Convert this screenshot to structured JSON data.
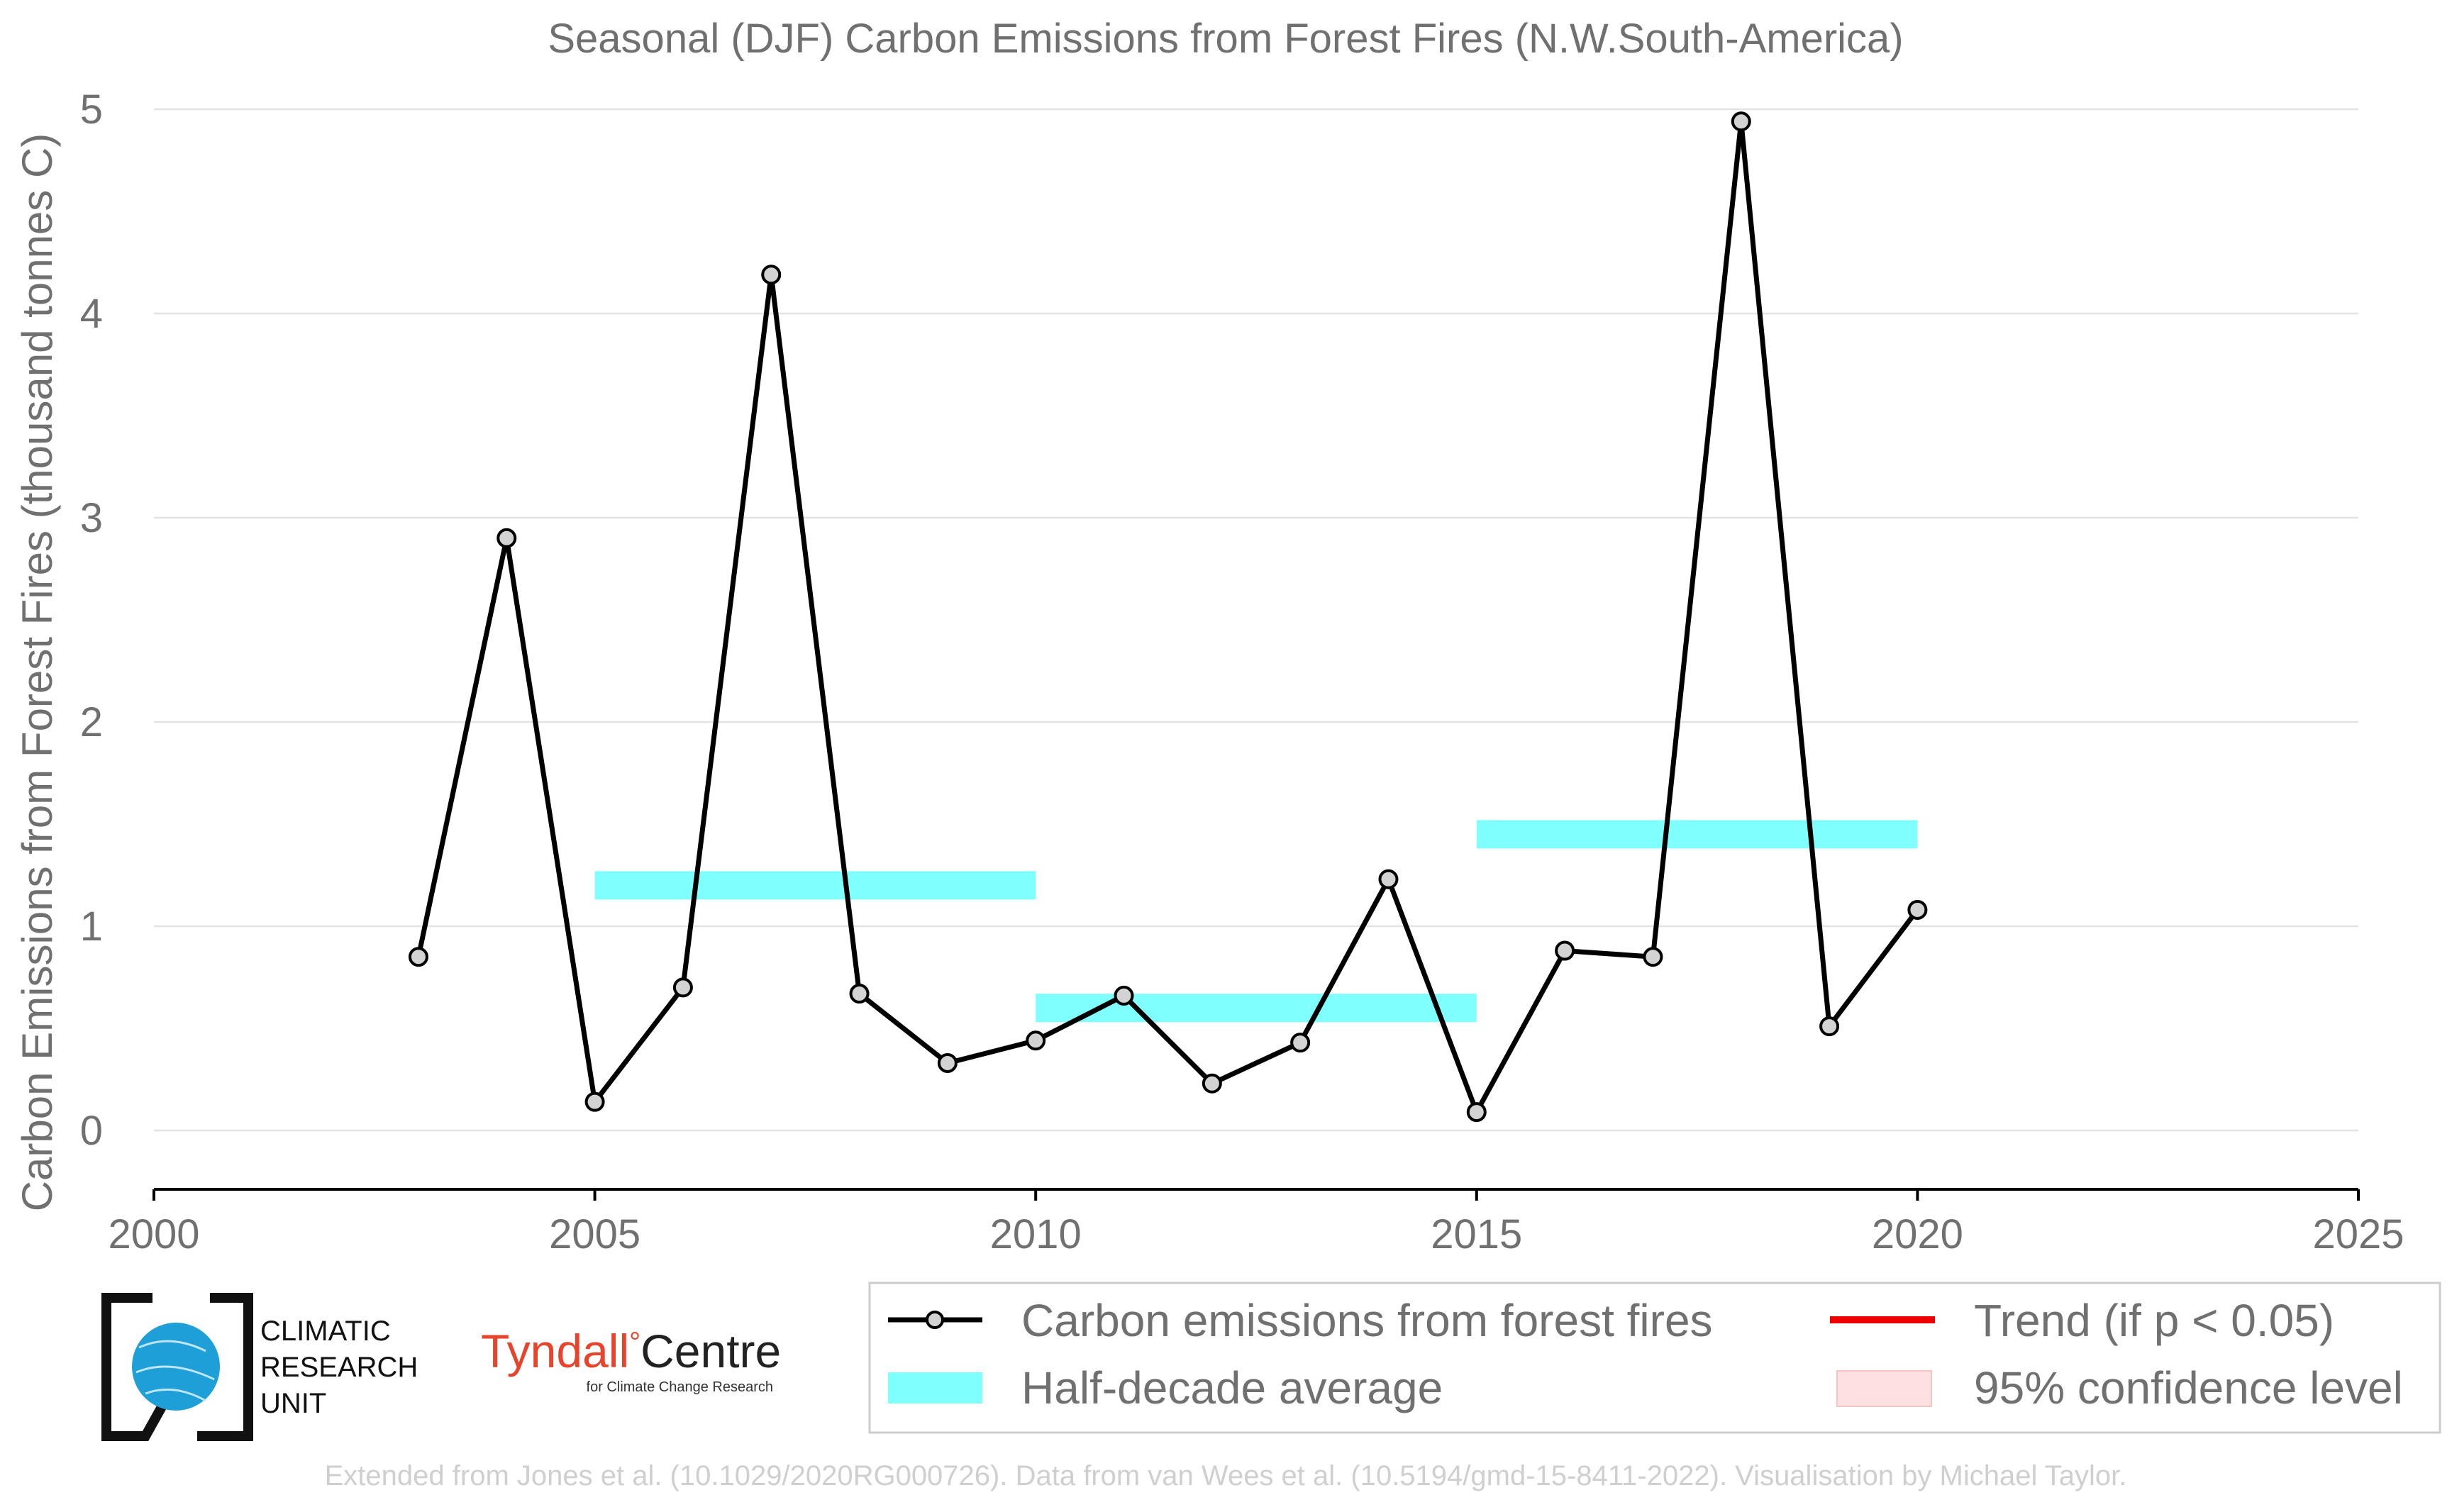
{
  "chart_data": {
    "type": "line",
    "title": "Seasonal (DJF) Carbon Emissions from Forest Fires (N.W.South-America)",
    "xlabel": "",
    "ylabel": "Carbon Emissions from Forest Fires (thousand tonnes C)",
    "xlim": [
      2000,
      2025
    ],
    "ylim": [
      0,
      5
    ],
    "xticks": [
      2000,
      2005,
      2010,
      2015,
      2020,
      2025
    ],
    "yticks": [
      0,
      1,
      2,
      3,
      4,
      5
    ],
    "grid": "horizontal",
    "series": [
      {
        "name": "Carbon emissions from forest fires",
        "color": "#000000",
        "marker_fill": "#d3d3d3",
        "x": [
          2003,
          2004,
          2005,
          2006,
          2007,
          2008,
          2009,
          2010,
          2011,
          2012,
          2013,
          2014,
          2015,
          2016,
          2017,
          2018,
          2019,
          2020
        ],
        "y": [
          0.85,
          2.9,
          0.14,
          0.7,
          4.19,
          0.67,
          0.33,
          0.44,
          0.66,
          0.23,
          0.43,
          1.23,
          0.09,
          0.88,
          0.85,
          4.94,
          0.51,
          1.08
        ]
      }
    ],
    "half_decade_averages": [
      {
        "x_start": 2005,
        "x_end": 2010,
        "value": 1.2
      },
      {
        "x_start": 2010,
        "x_end": 2015,
        "value": 0.6
      },
      {
        "x_start": 2015,
        "x_end": 2020,
        "value": 1.45
      }
    ],
    "legend": {
      "placement": "bottom-right",
      "entries": [
        {
          "label": "Carbon emissions from forest fires",
          "type": "line-marker",
          "color": "#000000"
        },
        {
          "label": "Trend (if p < 0.05)",
          "type": "line",
          "color": "#ee0000"
        },
        {
          "label": "Half-decade average",
          "type": "band",
          "color": "#80ffff"
        },
        {
          "label": "95% confidence level",
          "type": "band",
          "color": "#ffe0e0"
        }
      ]
    }
  },
  "logos": {
    "cru_lines": [
      "CLIMATIC",
      "RESEARCH",
      "UNIT"
    ],
    "tyndall_main": "Tyndall",
    "tyndall_degree": "°",
    "tyndall_centre": "Centre",
    "tyndall_sub": "for Climate Change Research"
  },
  "footer": "Extended from Jones et al. (10.1029/2020RG000726). Data from van Wees et al. (10.5194/gmd-15-8411-2022). Visualisation by Michael Taylor.",
  "colors": {
    "line": "#000000",
    "marker_fill": "#d3d3d3",
    "band": "#80ffff",
    "trend": "#ee0000",
    "confidence": "#ffe0e0",
    "cru_globe": "#1e9fd8"
  }
}
